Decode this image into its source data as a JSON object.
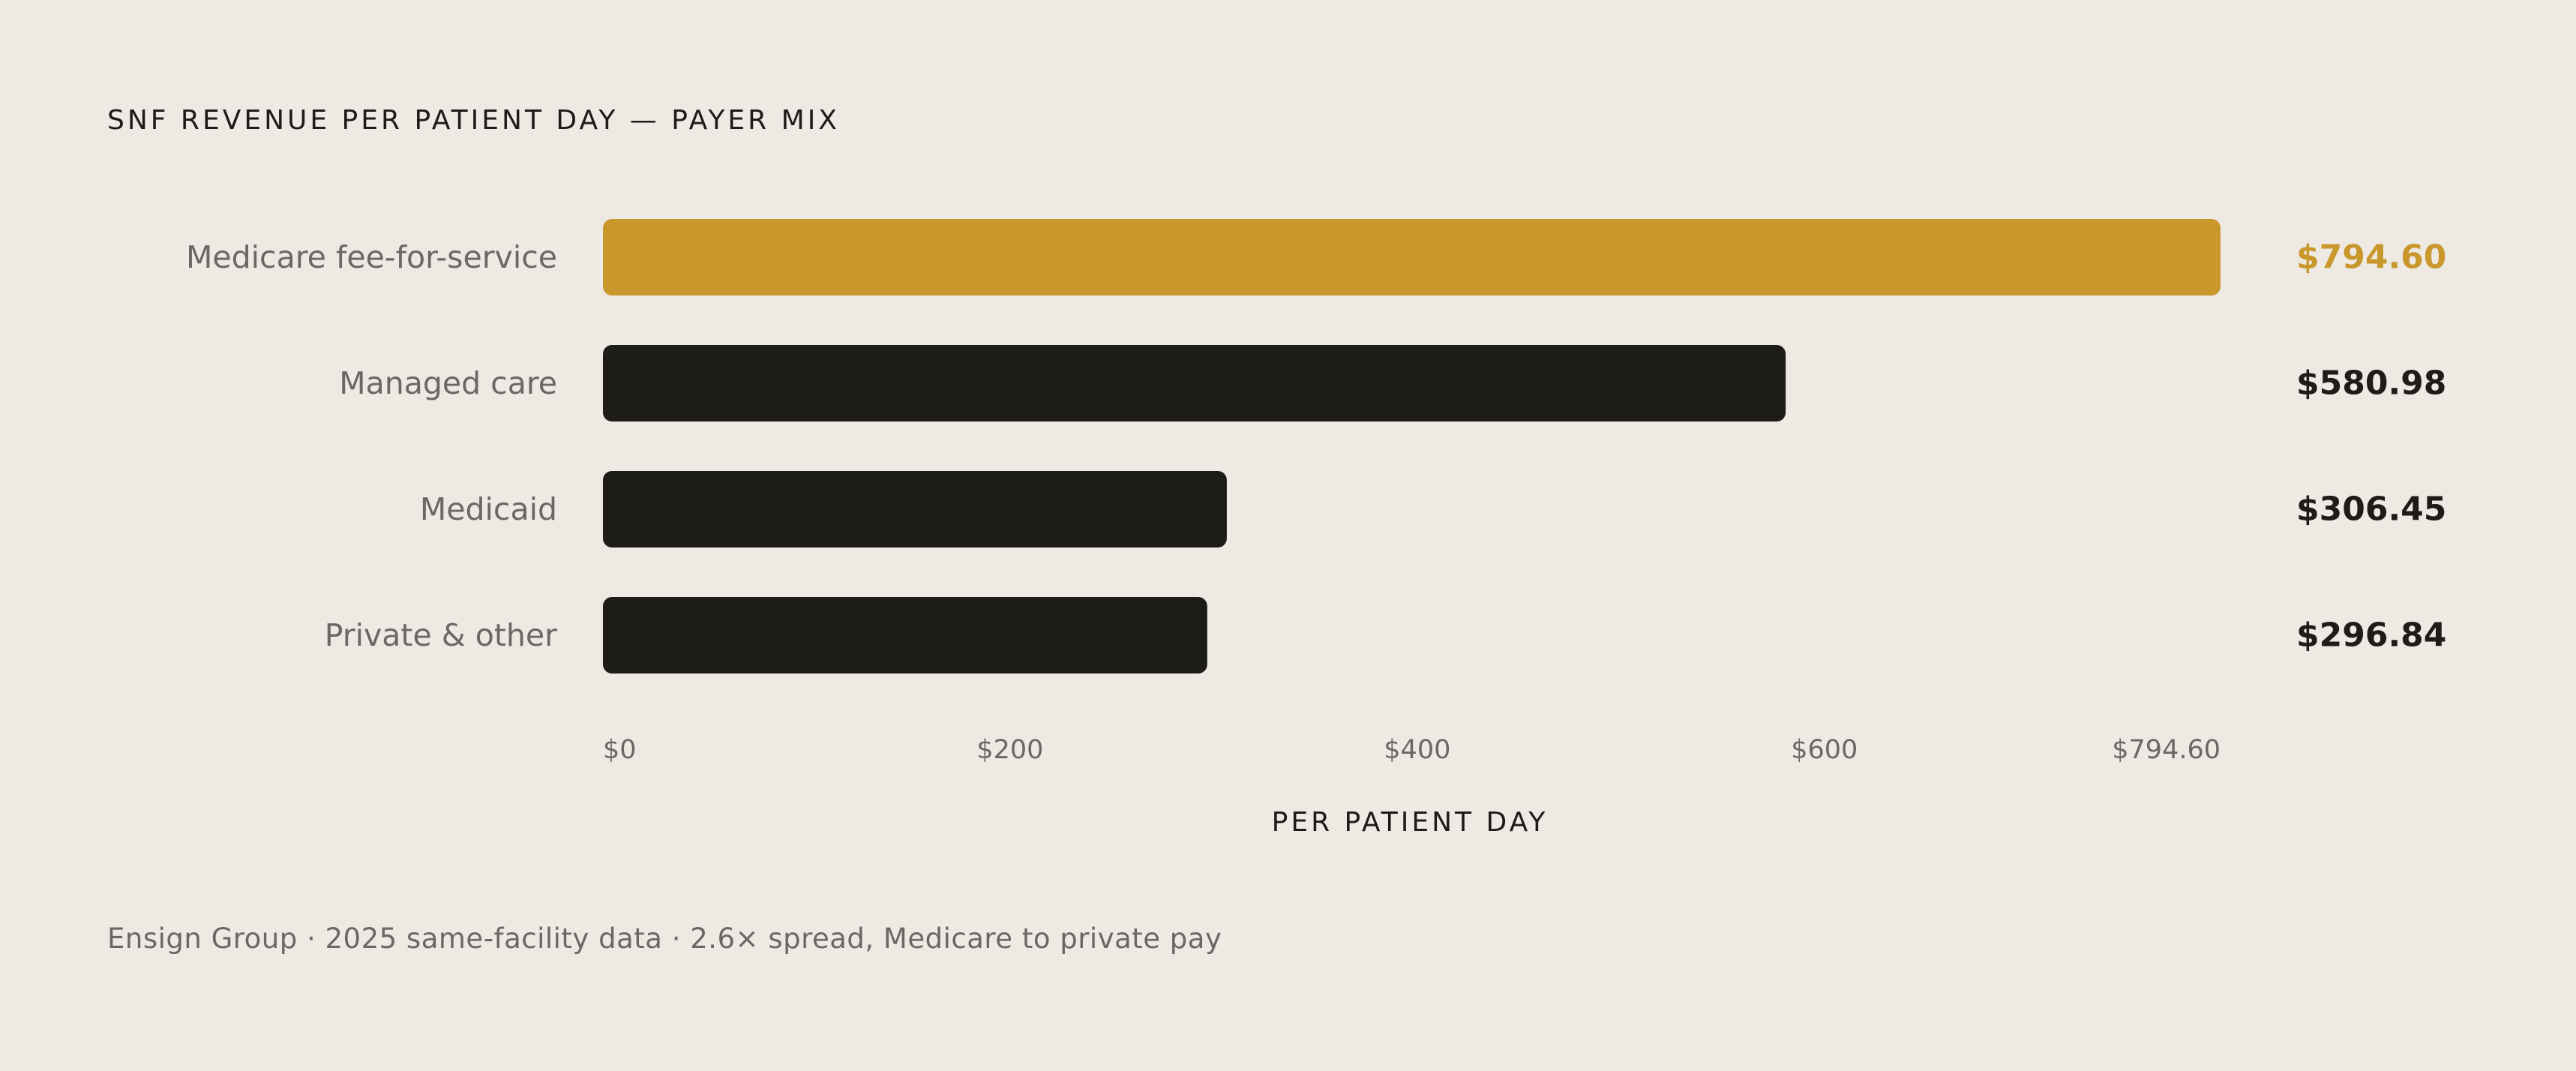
{
  "title": "SNF REVENUE PER PATIENT DAY — PAYER MIX",
  "footer": "Ensign Group · 2025 same-facility data · 2.6× spread, Medicare to private pay",
  "colors": {
    "highlight": "#c9982d",
    "bar": "#1e1c18",
    "category_label": "#6b6762",
    "tick_label": "#6b6762",
    "value_label": "#1e1c18",
    "axis_title": "#1d1b18"
  },
  "chart_data": {
    "type": "bar",
    "orientation": "horizontal",
    "categories": [
      "Medicare fee-for-service",
      "Managed care",
      "Medicaid",
      "Private & other"
    ],
    "values": [
      794.6,
      580.98,
      306.45,
      296.84
    ],
    "value_labels": [
      "$794.60",
      "$580.98",
      "$306.45",
      "$296.84"
    ],
    "highlight_index": 0,
    "xlim": [
      0,
      794.6
    ],
    "ticks": [
      0,
      200,
      400,
      600,
      794.6
    ],
    "tick_labels": [
      "$0",
      "$200",
      "$400",
      "$600",
      "$794.60"
    ],
    "xlabel": "PER PATIENT DAY",
    "ylabel": "",
    "grid": false,
    "legend": "none"
  }
}
